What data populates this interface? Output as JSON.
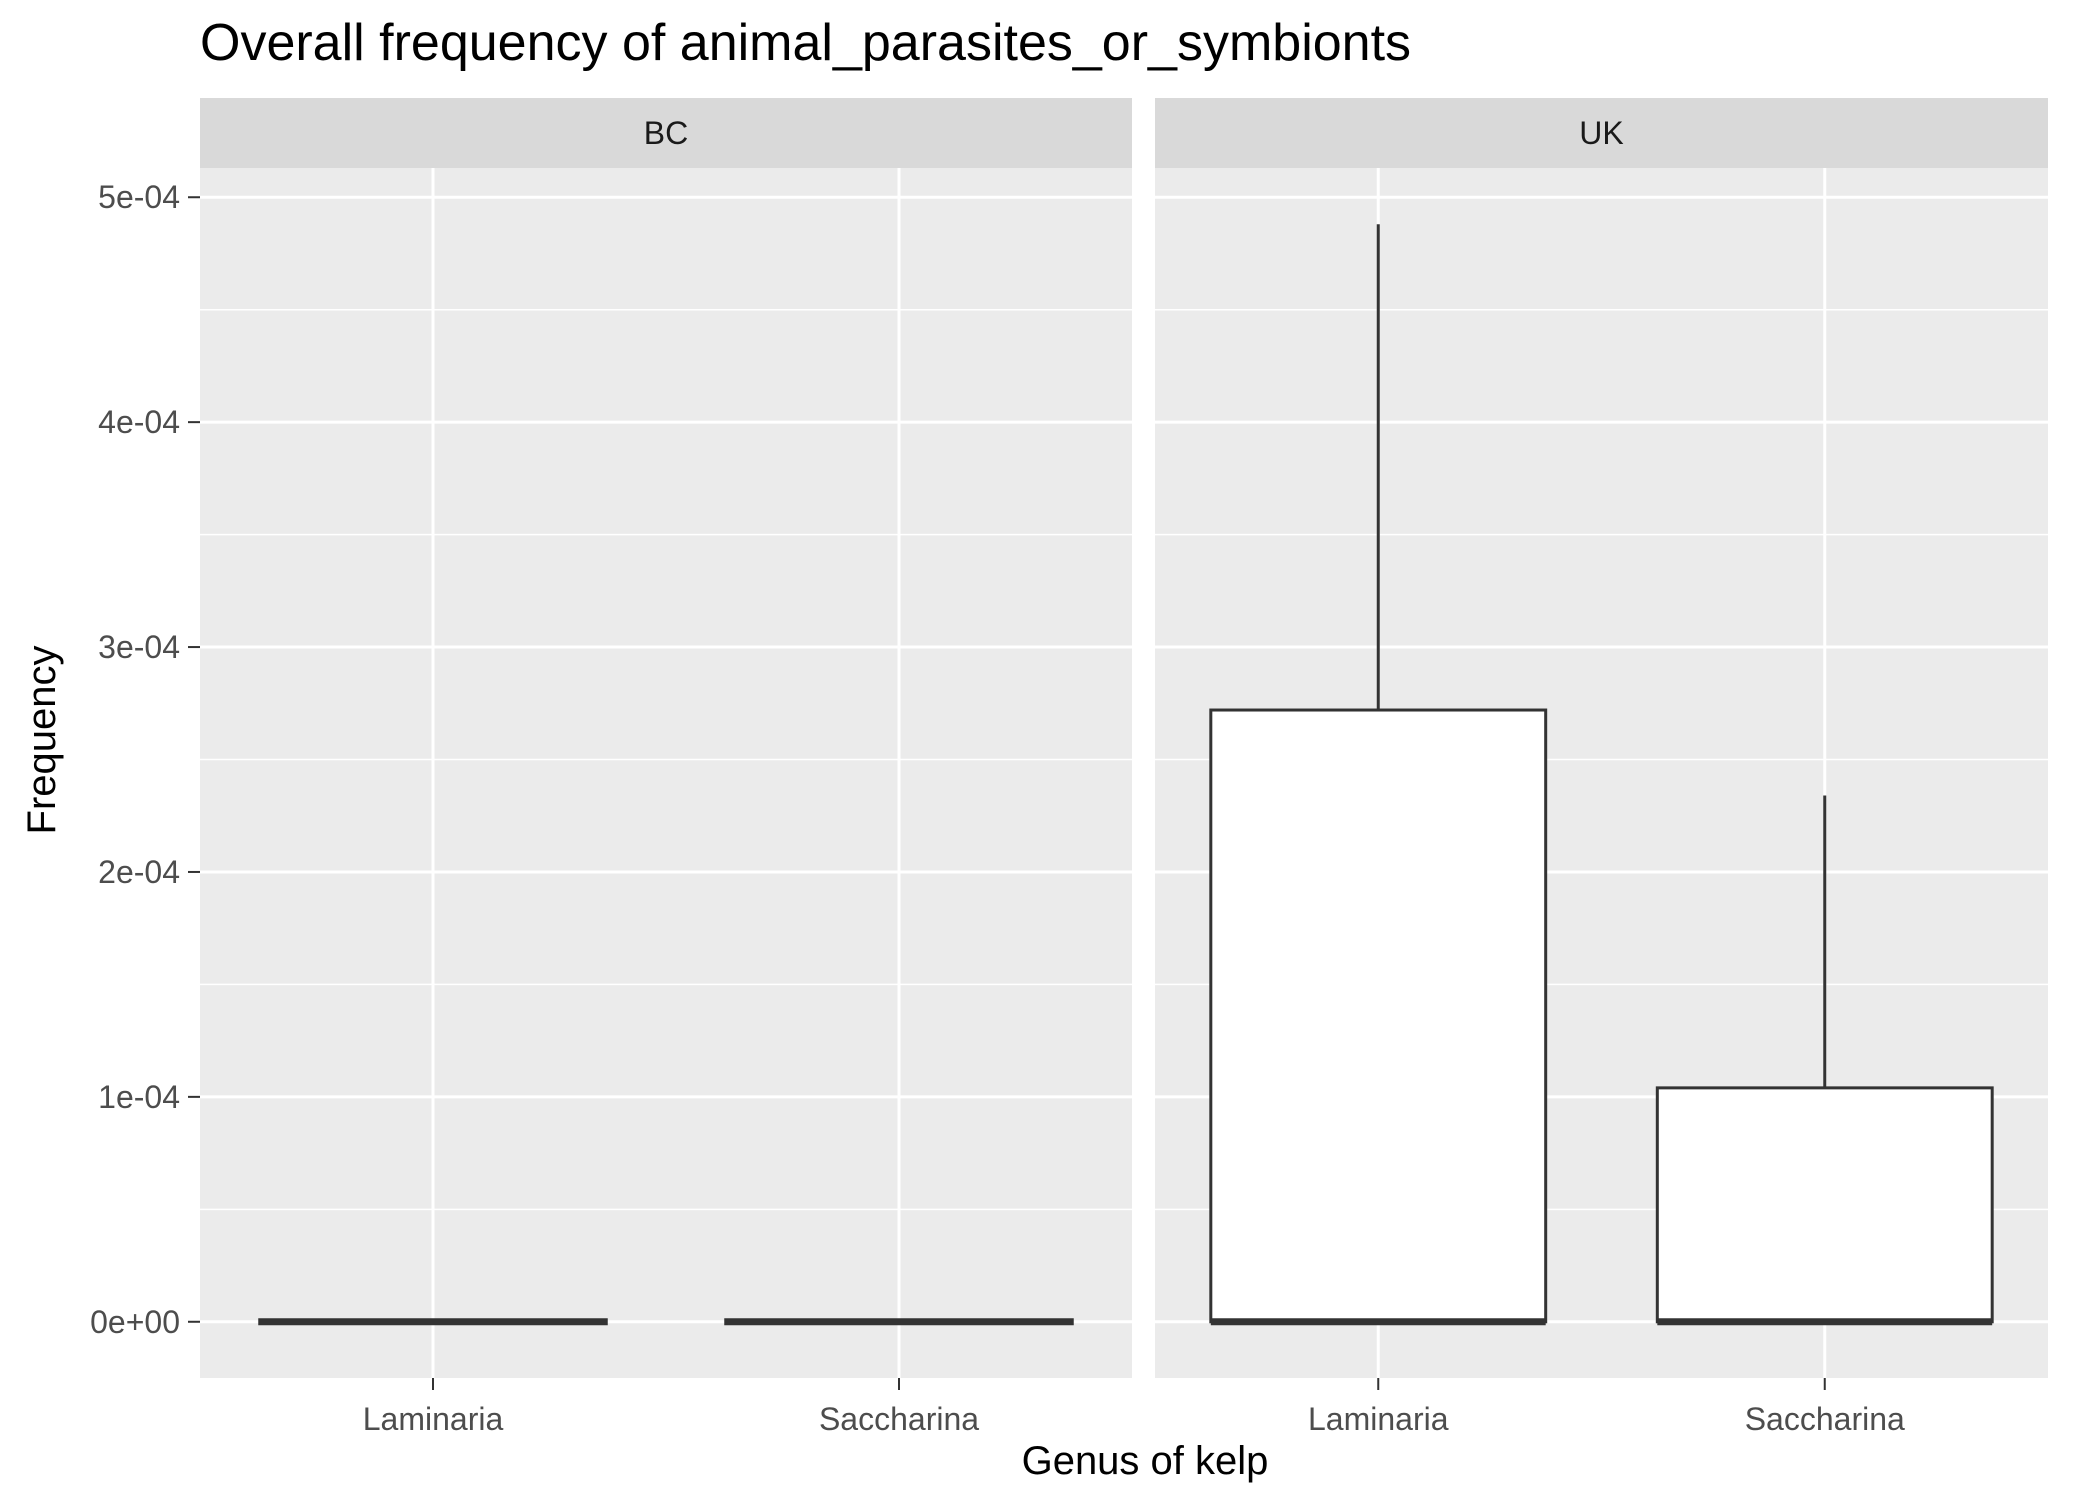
{
  "chart_data": {
    "type": "boxplot",
    "title": "Overall frequency of animal_parasites_or_symbionts",
    "xlabel": "Genus of kelp",
    "ylabel": "Frequency",
    "ylim": [
      -2.5e-05,
      0.000513
    ],
    "yticks": [
      0,
      0.0001,
      0.0002,
      0.0003,
      0.0004,
      0.0005
    ],
    "ytick_labels": [
      "0e+00",
      "1e-04",
      "2e-04",
      "3e-04",
      "4e-04",
      "5e-04"
    ],
    "categories": [
      "Laminaria",
      "Saccharina"
    ],
    "facets": [
      {
        "label": "BC",
        "boxes": [
          {
            "category": "Laminaria",
            "min": 0,
            "q1": 0,
            "median": 0,
            "q3": 0,
            "max": 0
          },
          {
            "category": "Saccharina",
            "min": 0,
            "q1": 0,
            "median": 0,
            "q3": 0,
            "max": 0
          }
        ]
      },
      {
        "label": "UK",
        "boxes": [
          {
            "category": "Laminaria",
            "min": 0,
            "q1": 0,
            "median": 0,
            "q3": 0.000272,
            "max": 0.000488
          },
          {
            "category": "Saccharina",
            "min": 0,
            "q1": 0,
            "median": 0,
            "q3": 0.000104,
            "max": 0.000234
          }
        ]
      }
    ],
    "grid": true,
    "colors": {
      "panel_background": "#ebebeb",
      "strip_background": "#d9d9d9",
      "grid": "#ffffff",
      "box_fill": "#ffffff",
      "box_stroke": "#333333"
    }
  }
}
